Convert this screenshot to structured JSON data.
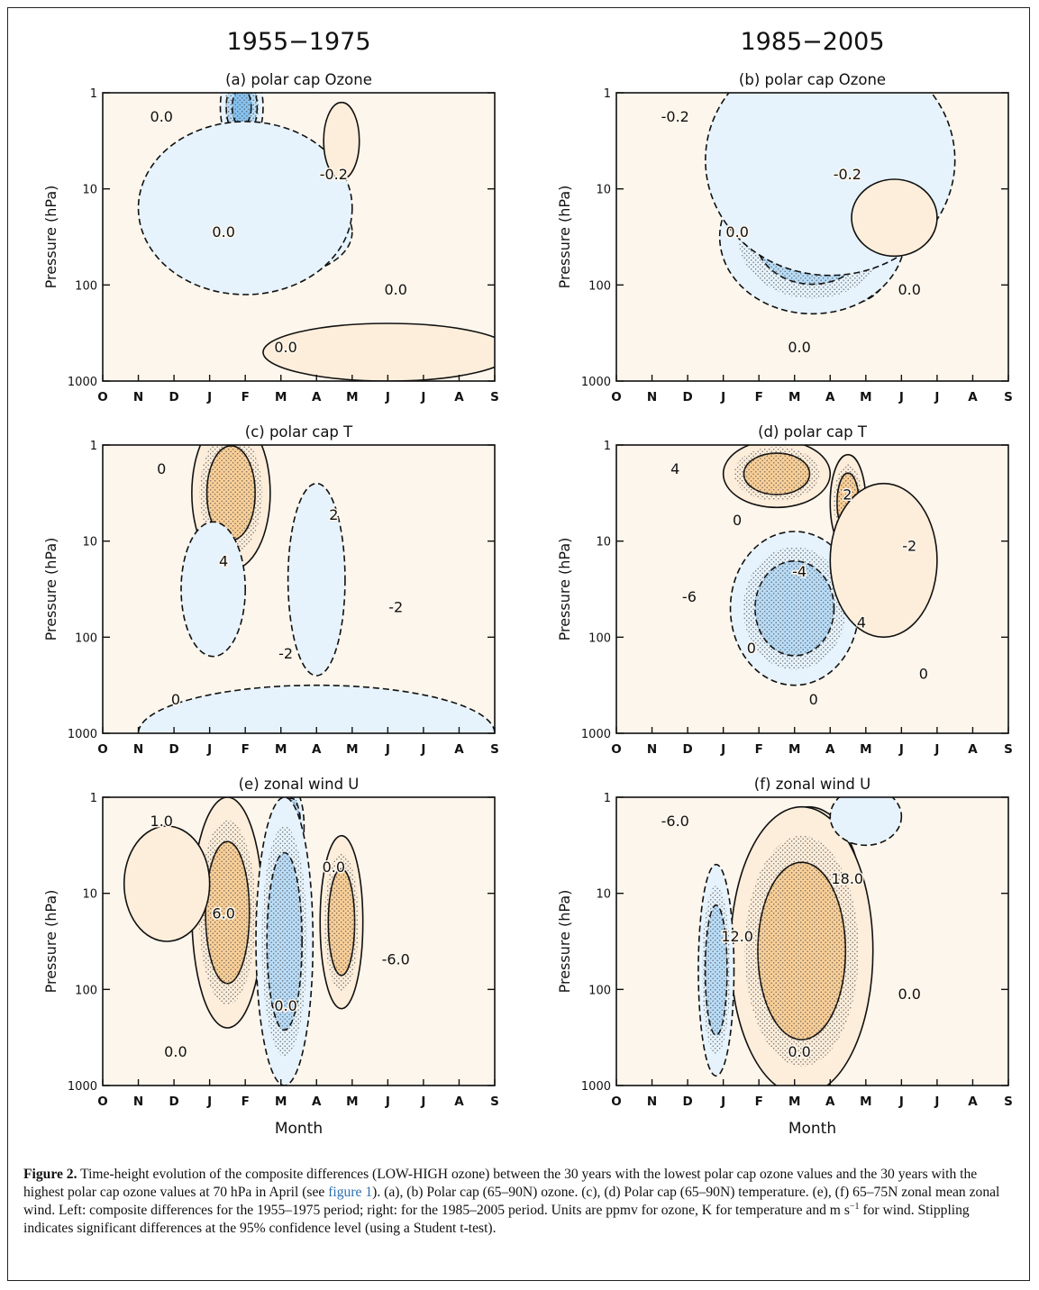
{
  "figure": {
    "columns": [
      {
        "title": "1955−1975"
      },
      {
        "title": "1985−2005"
      }
    ],
    "y_axis_label": "Pressure (hPa)",
    "y_ticks": [
      "1",
      "10",
      "100",
      "1000"
    ],
    "x_ticks": [
      "O",
      "N",
      "D",
      "J",
      "F",
      "M",
      "A",
      "M",
      "J",
      "J",
      "A",
      "S"
    ],
    "x_axis_label": "Month",
    "colors": {
      "blue": "#3d9de6",
      "orange": "#e8590f",
      "stipple": "#444444"
    },
    "panels": [
      {
        "title": "(a) polar cap Ozone",
        "labels": [
          "0.0",
          "-0.2",
          "0.0",
          "0.0",
          "0.0"
        ],
        "blobs": [
          {
            "sign": "neg",
            "level": 3,
            "month": 3.9,
            "logp": 0.15,
            "rm": 0.6,
            "rl": 0.45
          },
          {
            "sign": "neg",
            "level": 2,
            "month": 5.0,
            "logp": 1.45,
            "rm": 2.0,
            "rl": 0.45
          },
          {
            "sign": "neg",
            "level": 1,
            "month": 4.0,
            "logp": 1.2,
            "rm": 3.0,
            "rl": 0.9
          },
          {
            "sign": "pos",
            "level": 1,
            "month": 6.7,
            "logp": 0.5,
            "rm": 0.5,
            "rl": 0.4
          },
          {
            "sign": "pos",
            "level": 1,
            "month": 8.0,
            "logp": 2.7,
            "rm": 3.5,
            "rl": 0.3
          }
        ]
      },
      {
        "title": "(b) polar cap Ozone",
        "labels": [
          "-0.2",
          "-0.2",
          "0.0",
          "0.0",
          "0.0"
        ],
        "blobs": [
          {
            "sign": "neg",
            "level": 4,
            "month": 6.5,
            "logp": 1.75,
            "rm": 1.2,
            "rl": 0.45
          },
          {
            "sign": "neg",
            "level": 2,
            "month": 5.5,
            "logp": 1.5,
            "rm": 2.6,
            "rl": 0.8
          },
          {
            "sign": "neg",
            "level": 1,
            "month": 6.0,
            "logp": 0.7,
            "rm": 3.5,
            "rl": 1.2
          },
          {
            "sign": "pos",
            "level": 2,
            "month": 7.5,
            "logp": 1.3,
            "rm": 0.6,
            "rl": 0.25
          },
          {
            "sign": "pos",
            "level": 1,
            "month": 7.8,
            "logp": 1.3,
            "rm": 1.2,
            "rl": 0.4
          }
        ]
      },
      {
        "title": "(c) polar cap T",
        "labels": [
          "0",
          "2",
          "4",
          "-2",
          "-2",
          "0"
        ],
        "blobs": [
          {
            "sign": "pos",
            "level": 3,
            "month": 4.0,
            "logp": 0.4,
            "rm": 0.5,
            "rl": 0.5
          },
          {
            "sign": "pos",
            "level": 2,
            "month": 3.6,
            "logp": 0.5,
            "rm": 1.1,
            "rl": 0.8
          },
          {
            "sign": "neg",
            "level": 1,
            "month": 3.1,
            "logp": 1.5,
            "rm": 0.9,
            "rl": 0.7
          },
          {
            "sign": "neg",
            "level": 1,
            "month": 6.0,
            "logp": 1.4,
            "rm": 0.8,
            "rl": 1.0
          },
          {
            "sign": "neg",
            "level": 1,
            "month": 6.0,
            "logp": 3.0,
            "rm": 5.0,
            "rl": 0.5
          }
        ]
      },
      {
        "title": "(d) polar cap T",
        "labels": [
          "4",
          "2",
          "0",
          "-2",
          "-4",
          "-6",
          "4",
          "0",
          "0",
          "0"
        ],
        "blobs": [
          {
            "sign": "neg",
            "level": 3,
            "month": 5.5,
            "logp": 2.0,
            "rm": 1.0,
            "rl": 0.4
          },
          {
            "sign": "neg",
            "level": 2,
            "month": 5.0,
            "logp": 1.7,
            "rm": 1.8,
            "rl": 0.8
          },
          {
            "sign": "pos",
            "level": 2,
            "month": 4.5,
            "logp": 0.3,
            "rm": 1.5,
            "rl": 0.35
          },
          {
            "sign": "pos",
            "level": 2,
            "month": 6.5,
            "logp": 0.6,
            "rm": 0.5,
            "rl": 0.5
          },
          {
            "sign": "pos",
            "level": 1,
            "month": 7.5,
            "logp": 1.2,
            "rm": 1.5,
            "rl": 0.8
          }
        ]
      },
      {
        "title": "(e) zonal wind U",
        "labels": [
          "1.0",
          "0.0",
          "6.0",
          "-6.0",
          "0.0",
          "0.0"
        ],
        "blobs": [
          {
            "sign": "pos",
            "level": 3,
            "month": 3.7,
            "logp": 0.8,
            "rm": 0.5,
            "rl": 0.6
          },
          {
            "sign": "pos",
            "level": 2,
            "month": 3.5,
            "logp": 1.2,
            "rm": 1.0,
            "rl": 1.2
          },
          {
            "sign": "neg",
            "level": 3,
            "month": 5.3,
            "logp": 0.3,
            "rm": 0.35,
            "rl": 0.4
          },
          {
            "sign": "neg",
            "level": 2,
            "month": 5.1,
            "logp": 1.5,
            "rm": 0.8,
            "rl": 1.5
          },
          {
            "sign": "pos",
            "level": 2,
            "month": 6.7,
            "logp": 1.3,
            "rm": 0.6,
            "rl": 0.9
          },
          {
            "sign": "pos",
            "level": 1,
            "month": 1.8,
            "logp": 0.9,
            "rm": 1.2,
            "rl": 0.6
          }
        ]
      },
      {
        "title": "(f) zonal wind U",
        "labels": [
          "-6.0",
          "18.0",
          "12.0",
          "0.0",
          "0.0"
        ],
        "blobs": [
          {
            "sign": "pos",
            "level": 4,
            "month": 5.6,
            "logp": 0.8,
            "rm": 0.9,
            "rl": 0.6
          },
          {
            "sign": "pos",
            "level": 3,
            "month": 5.4,
            "logp": 1.1,
            "rm": 1.5,
            "rl": 1.0
          },
          {
            "sign": "pos",
            "level": 2,
            "month": 5.2,
            "logp": 1.6,
            "rm": 2.0,
            "rl": 1.5
          },
          {
            "sign": "neg",
            "level": 2,
            "month": 2.8,
            "logp": 1.8,
            "rm": 0.5,
            "rl": 1.1
          },
          {
            "sign": "neg",
            "level": 1,
            "month": 7.0,
            "logp": 0.2,
            "rm": 1.0,
            "rl": 0.3
          }
        ]
      }
    ]
  },
  "caption": {
    "label": "Figure 2.",
    "text": " Time-height evolution of the composite differences (LOW-HIGH ozone) between the 30 years with the lowest polar cap ozone values and the 30 years with the highest polar cap ozone values at 70 hPa in April (see ",
    "ref": "figure 1",
    "text2": "). (a), (b) Polar cap (65–90N) ozone. (c), (d) Polar cap (65–90N) temperature. (e), (f) 65–75N zonal mean zonal wind. Left: composite differences for the 1955–1975 period; right: for the 1985–2005 period. Units are ppmv for ozone, K for temperature and m s",
    "sup": "−1",
    "text3": " for wind. Stippling indicates significant differences at the 95% confidence level (using a Student t-test)."
  }
}
